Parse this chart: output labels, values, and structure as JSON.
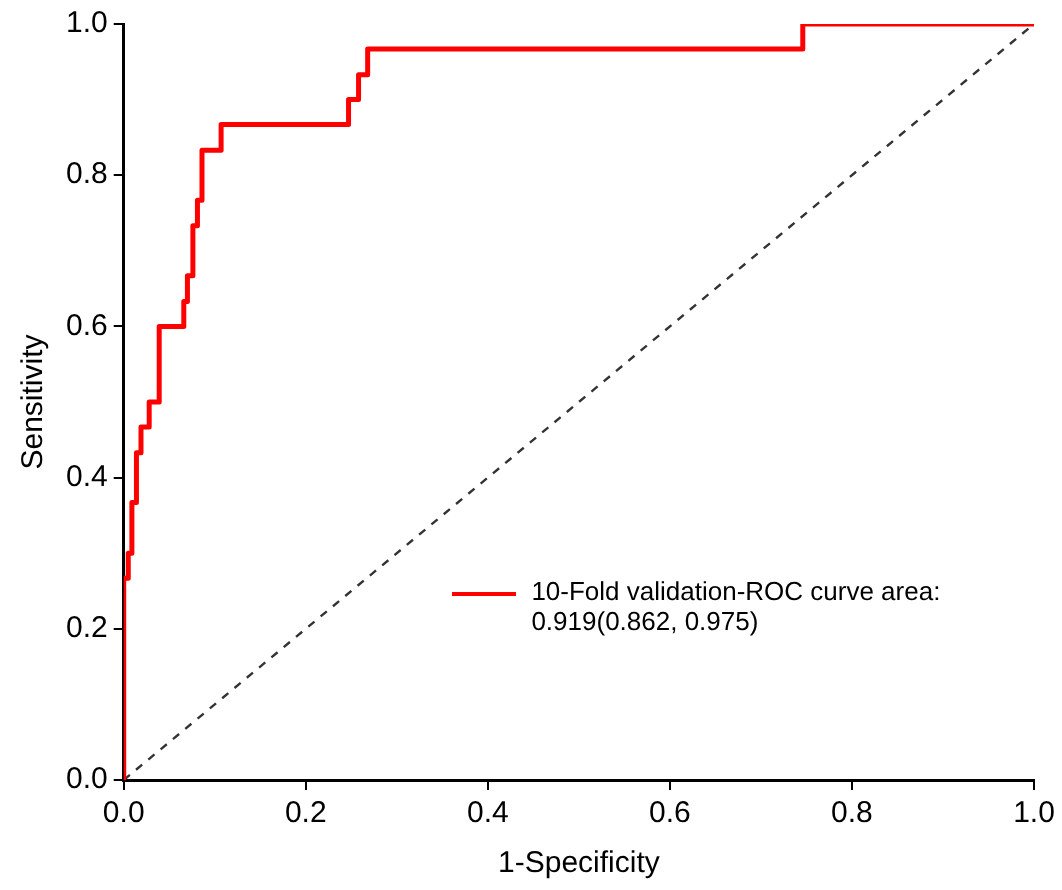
{
  "chart_data": {
    "type": "step",
    "xlabel": "1-Specificity",
    "ylabel": "Sensitivity",
    "xlim": [
      0,
      1
    ],
    "ylim": [
      0,
      1
    ],
    "xticks": [
      {
        "value": 0,
        "label": "0.0"
      },
      0.2,
      0.4,
      0.6,
      0.8,
      {
        "value": 1,
        "label": "1.0"
      }
    ],
    "yticks": [
      {
        "value": 0,
        "label": "0.0"
      },
      0.2,
      0.4,
      0.6,
      0.8,
      {
        "value": 1,
        "label": "1.0"
      }
    ],
    "grid": false,
    "legend": "right",
    "marker": "none",
    "series": [
      {
        "name": "10-Fold validation-ROC curve area:\n0.919(0.862, 0.975)",
        "color": "#ff0000",
        "line_style": "solid",
        "x": [
          0,
          0,
          0.005,
          0.009,
          0.014,
          0.019,
          0.028,
          0.039,
          0.066,
          0.07,
          0.076,
          0.081,
          0.086,
          0.107,
          0.247,
          0.258,
          0.268,
          0.746,
          1
        ],
        "values": [
          0,
          0.267,
          0.3,
          0.367,
          0.433,
          0.467,
          0.5,
          0.6,
          0.633,
          0.667,
          0.733,
          0.767,
          0.833,
          0.867,
          0.9,
          0.933,
          0.967,
          1,
          1
        ]
      },
      {
        "type": "line",
        "color": "#333333",
        "line_style": "dashed",
        "x": [
          0,
          1
        ],
        "values": [
          0,
          1
        ]
      }
    ]
  }
}
